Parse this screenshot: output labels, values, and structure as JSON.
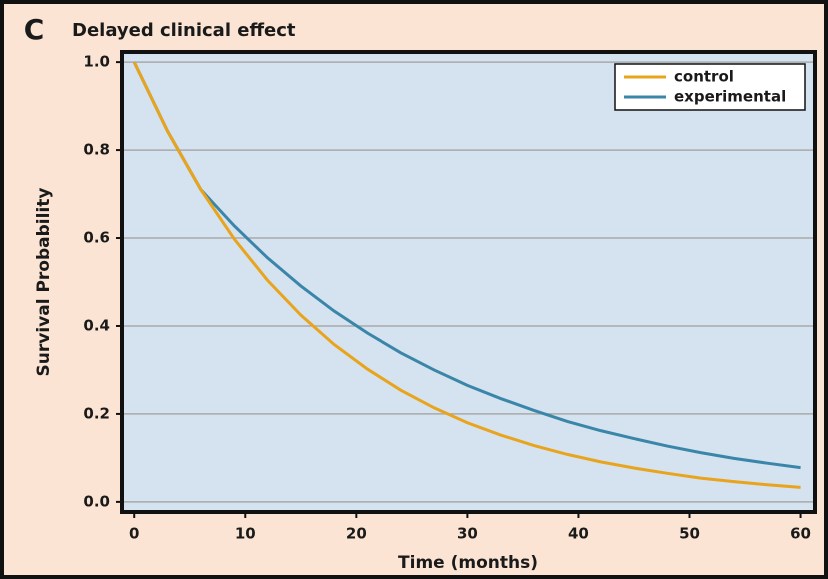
{
  "chart_data": {
    "type": "line",
    "panel_label": "C",
    "title": "Delayed clinical effect",
    "x_label": "Time (months)",
    "y_label": "Survival Probability",
    "x": [
      0,
      3,
      6,
      9,
      12,
      15,
      18,
      21,
      24,
      27,
      30,
      33,
      36,
      39,
      42,
      45,
      48,
      51,
      54,
      57,
      60
    ],
    "series": [
      {
        "name": "control",
        "color": "#e8a41c",
        "values": [
          1.0,
          0.843,
          0.71,
          0.598,
          0.504,
          0.425,
          0.358,
          0.302,
          0.254,
          0.214,
          0.18,
          0.152,
          0.128,
          0.108,
          0.091,
          0.077,
          0.065,
          0.054,
          0.046,
          0.039,
          0.033
        ]
      },
      {
        "name": "experimental",
        "color": "#3a86a8",
        "values": [
          1.0,
          0.843,
          0.71,
          0.628,
          0.555,
          0.491,
          0.434,
          0.384,
          0.339,
          0.3,
          0.265,
          0.235,
          0.208,
          0.183,
          0.162,
          0.144,
          0.127,
          0.112,
          0.099,
          0.088,
          0.078
        ]
      }
    ],
    "xlim": [
      -1.1,
      61.3
    ],
    "ylim": [
      -0.023,
      1.023
    ],
    "xticks": [
      0,
      10,
      20,
      30,
      40,
      50,
      60
    ],
    "yticks": [
      {
        "value": 0,
        "label": "0.0"
      },
      {
        "value": 0.2,
        "label": "0.2"
      },
      {
        "value": 0.4,
        "label": "0.4"
      },
      {
        "value": 0.6,
        "label": "0.6"
      },
      {
        "value": 0.8,
        "label": "0.8"
      },
      {
        "value": 1.0,
        "label": "1.0"
      }
    ],
    "grid": true,
    "legend": "upper right"
  }
}
